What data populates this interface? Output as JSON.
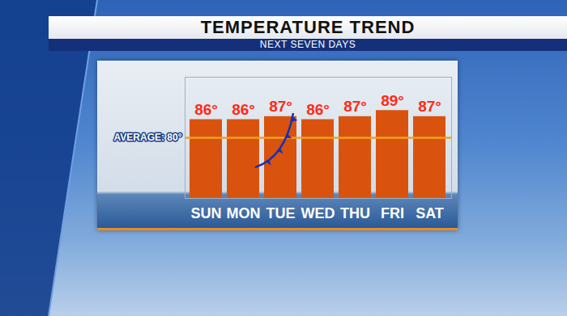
{
  "chart_data": {
    "type": "bar",
    "title": "TEMPERATURE TREND",
    "subtitle": "NEXT SEVEN DAYS",
    "categories": [
      "SUN",
      "MON",
      "TUE",
      "WED",
      "THU",
      "FRI",
      "SAT"
    ],
    "values": [
      86,
      86,
      87,
      86,
      87,
      89,
      87
    ],
    "value_labels": [
      "86°",
      "86°",
      "87°",
      "86°",
      "87°",
      "89°",
      "87°"
    ],
    "color": "#d9530f",
    "ylim": [
      60,
      100
    ],
    "yticks": [],
    "tick_labels": "x",
    "data_labels": true,
    "annotations": [
      {
        "y": 80,
        "label": "AVERAGE: 80°"
      }
    ]
  }
}
